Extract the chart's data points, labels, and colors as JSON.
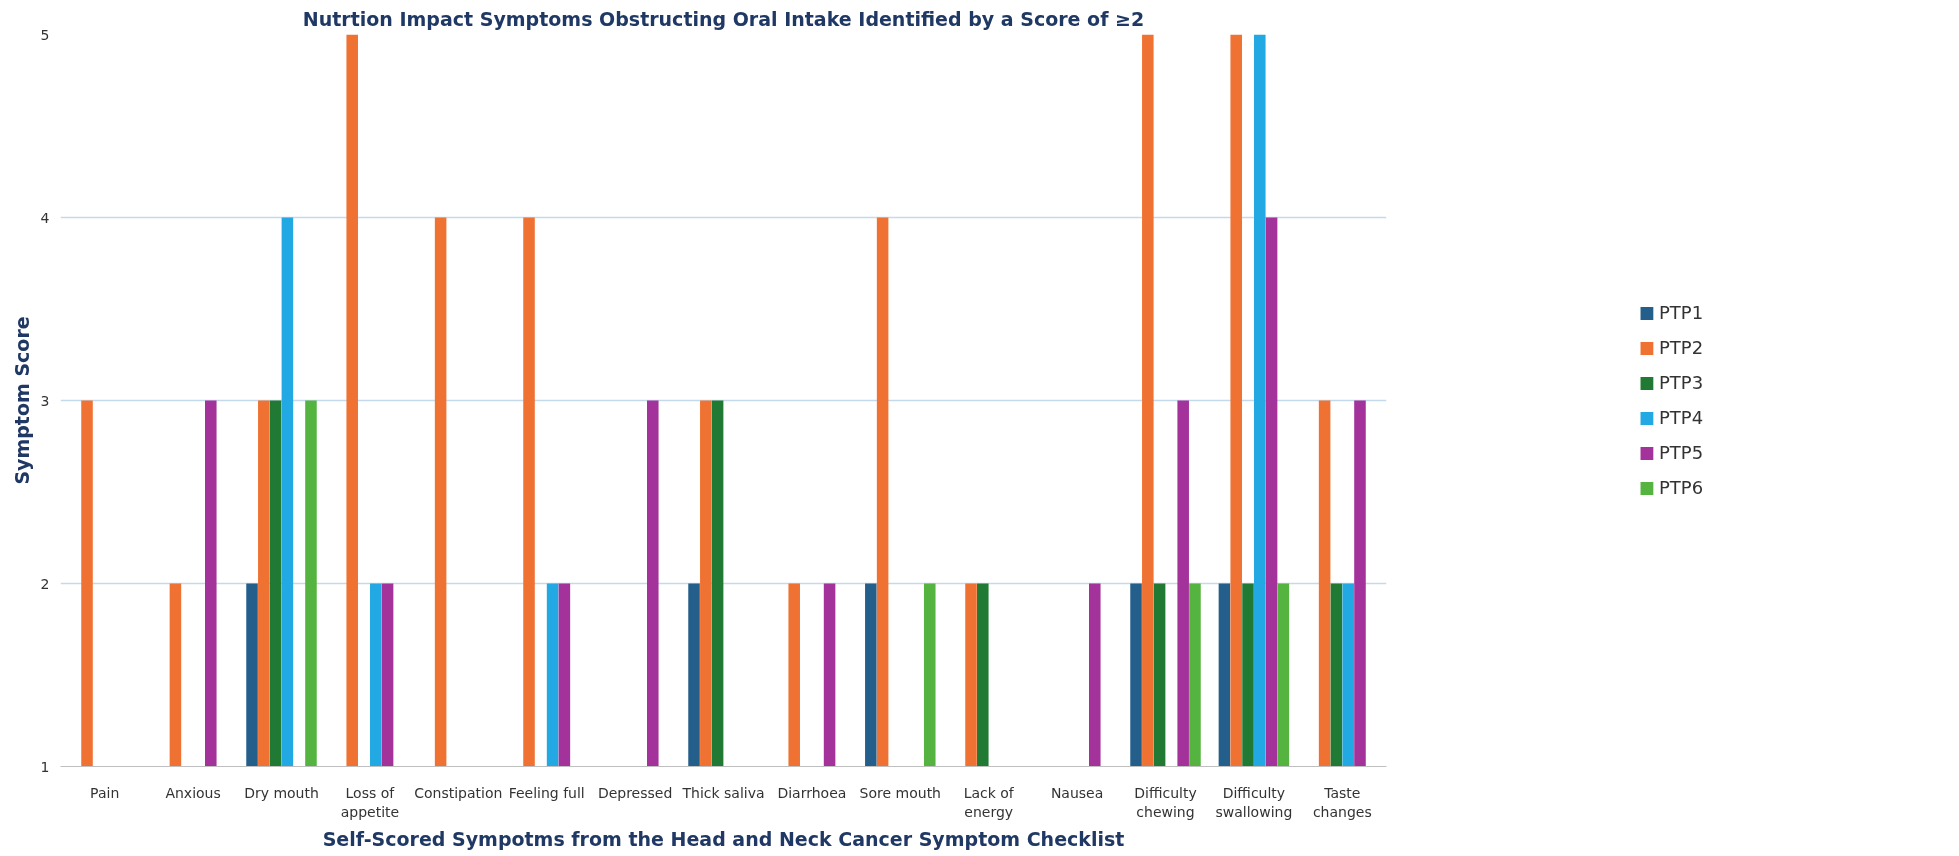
{
  "chart_data": {
    "type": "bar",
    "title": "Nutrtion Impact Symptoms Obstructing Oral Intake Identified by a Score of ≥2",
    "xlabel": "Self-Scored Sympotms from the Head and Neck Cancer Symptom Checklist",
    "ylabel": "Symptom Score",
    "categories": [
      "Pain",
      "Anxious",
      "Dry mouth",
      "Loss of appetite",
      "Constipation",
      "Feeling full",
      "Depressed",
      "Thick saliva",
      "Diarrhoea",
      "Sore mouth",
      "Lack of energy",
      "Nausea",
      "Difficulty chewing",
      "Difficulty swallowing",
      "Taste changes"
    ],
    "series": [
      {
        "name": "PTP1",
        "color": "#245f8c",
        "values": [
          null,
          null,
          2,
          null,
          null,
          null,
          null,
          2,
          null,
          2,
          null,
          null,
          2,
          2,
          null
        ]
      },
      {
        "name": "PTP2",
        "color": "#f07232",
        "values": [
          3,
          2,
          3,
          5,
          4,
          4,
          null,
          3,
          2,
          4,
          2,
          null,
          5,
          5,
          3
        ]
      },
      {
        "name": "PTP3",
        "color": "#217a33",
        "values": [
          null,
          null,
          3,
          null,
          null,
          null,
          null,
          3,
          null,
          null,
          2,
          null,
          2,
          2,
          2
        ]
      },
      {
        "name": "PTP4",
        "color": "#22a8e2",
        "values": [
          null,
          null,
          4,
          2,
          null,
          2,
          null,
          null,
          null,
          null,
          null,
          null,
          null,
          5,
          2
        ]
      },
      {
        "name": "PTP5",
        "color": "#a3329b",
        "values": [
          null,
          3,
          null,
          2,
          null,
          2,
          3,
          null,
          2,
          null,
          null,
          2,
          3,
          4,
          3
        ]
      },
      {
        "name": "PTP6",
        "color": "#55b43f",
        "values": [
          null,
          null,
          3,
          null,
          null,
          null,
          null,
          null,
          null,
          2,
          null,
          null,
          2,
          2,
          null
        ]
      }
    ],
    "ylim": [
      1,
      5
    ],
    "yticks": [
      1,
      2,
      3,
      4,
      5
    ],
    "grid": "y",
    "legend": "right"
  }
}
